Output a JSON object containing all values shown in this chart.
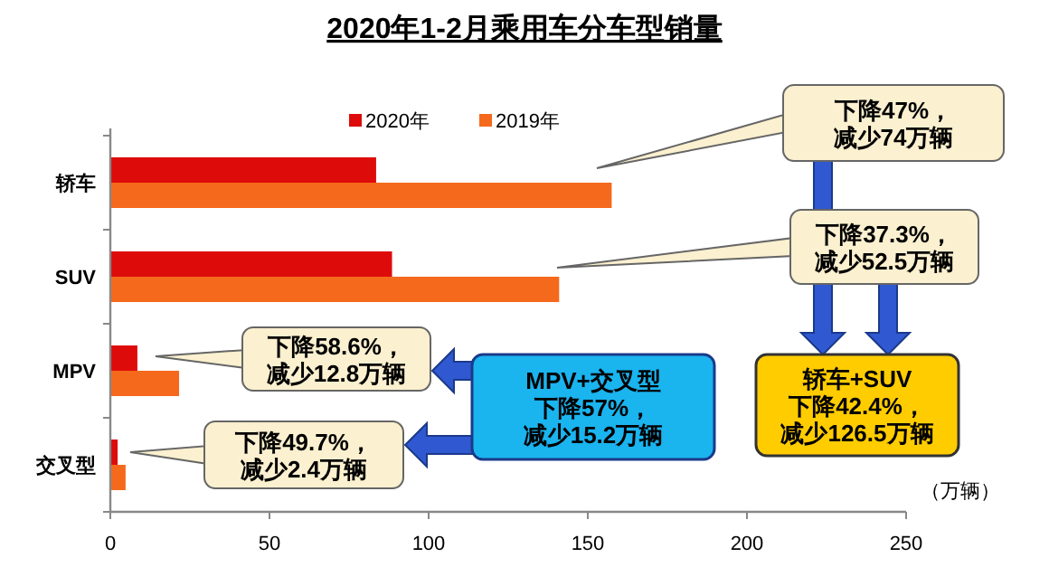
{
  "chart_data": {
    "type": "bar",
    "orientation": "horizontal",
    "title": "2020年1-2月乘用车分车型销量",
    "xlabel": "（万辆）",
    "categories": [
      "轿车",
      "SUV",
      "MPV",
      "交叉型"
    ],
    "series": [
      {
        "name": "2020年",
        "color": "#de0b0b",
        "values": [
          83.5,
          88.5,
          8.5,
          2.3
        ]
      },
      {
        "name": "2019年",
        "color": "#f4691c",
        "values": [
          157.5,
          141,
          21.6,
          4.8
        ]
      }
    ],
    "xlim": [
      0,
      250
    ],
    "xticks": [
      0,
      50,
      100,
      150,
      200,
      250
    ],
    "legend": "top",
    "grid": false,
    "annotations": [
      "下降47%，减少74万辆",
      "下降37.3%，减少52.5万辆",
      "下降58.6%，减少12.8万辆",
      "下降49.7%，减少2.4万辆",
      "MPV+交叉型下降57%，减少15.2万辆",
      "轿车+SUV下降42.4%，减少126.5万辆"
    ]
  }
}
